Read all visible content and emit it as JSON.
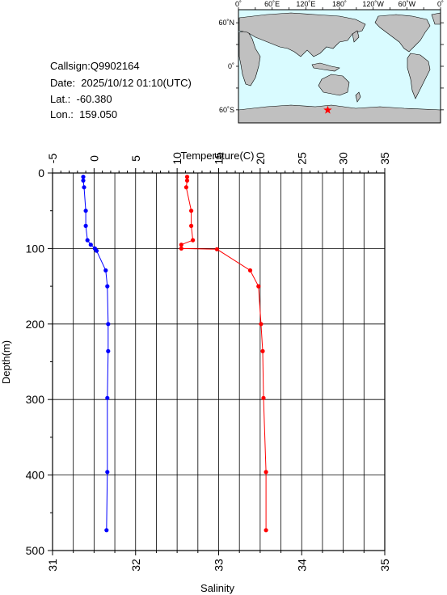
{
  "info": {
    "callsign": "Callsign:Q9902164",
    "date": "Date:  2025/10/12 01:10(UTC)",
    "lat": "Lat.:  -60.380",
    "lon": "Lon.:  159.050"
  },
  "map": {
    "top_labels": [
      "0˚",
      "60˚E",
      "120˚E",
      "180˚",
      "120˚W",
      "60˚W",
      "0˚"
    ],
    "left_labels": [
      "60˚N",
      "0˚",
      "60˚S"
    ],
    "marker_lat": -60.38,
    "marker_lon": 159.05,
    "ocean_color": "#d9fbff",
    "land_color": "#c0c0c0",
    "marker_color": "#ff0000"
  },
  "chart_data": {
    "type": "line",
    "xlabel_top": "Temperature(C)",
    "xlabel_bottom": "Salinity",
    "ylabel": "Depth(m)",
    "temperature_range": [
      -5,
      35
    ],
    "salinity_range": [
      31,
      35
    ],
    "depth_range": [
      0,
      500
    ],
    "temperature_ticks": [
      "-5",
      "0",
      "5",
      "10",
      "15",
      "20",
      "25",
      "30",
      "35"
    ],
    "salinity_ticks": [
      "31",
      "32",
      "33",
      "34",
      "35"
    ],
    "depth_ticks": [
      "0",
      "100",
      "200",
      "300",
      "400",
      "500"
    ],
    "series": [
      {
        "color": "#ff0000",
        "axis": "temperature",
        "points": [
          [
            11.2,
            5
          ],
          [
            11.2,
            10
          ],
          [
            11.1,
            19
          ],
          [
            11.7,
            50
          ],
          [
            11.7,
            70
          ],
          [
            11.9,
            89
          ],
          [
            10.5,
            95
          ],
          [
            10.5,
            100
          ],
          [
            14.8,
            101
          ],
          [
            18.8,
            129
          ],
          [
            19.8,
            150
          ],
          [
            20.1,
            200
          ],
          [
            20.3,
            236
          ],
          [
            20.4,
            298
          ],
          [
            20.7,
            396
          ],
          [
            20.7,
            473
          ]
        ]
      },
      {
        "color": "#0000ff",
        "axis": "salinity",
        "points": [
          [
            31.37,
            5
          ],
          [
            31.37,
            10
          ],
          [
            31.38,
            19
          ],
          [
            31.4,
            50
          ],
          [
            31.4,
            70
          ],
          [
            31.42,
            89
          ],
          [
            31.46,
            95
          ],
          [
            31.51,
            100
          ],
          [
            31.53,
            103
          ],
          [
            31.64,
            129
          ],
          [
            31.66,
            150
          ],
          [
            31.67,
            200
          ],
          [
            31.67,
            236
          ],
          [
            31.66,
            298
          ],
          [
            31.66,
            396
          ],
          [
            31.65,
            473
          ]
        ]
      }
    ]
  }
}
